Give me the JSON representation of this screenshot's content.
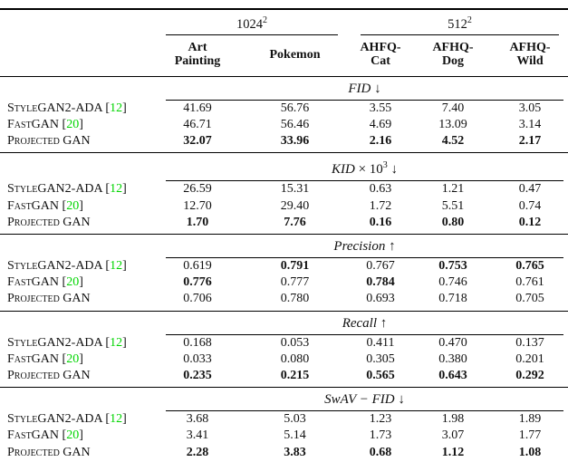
{
  "colors": {
    "citation_green": "#00d500",
    "text": "#111111",
    "rule": "#000000"
  },
  "table": {
    "resolution_groups": [
      {
        "base": "1024",
        "exponent": "2",
        "colspan": 2
      },
      {
        "base": "512",
        "exponent": "2",
        "colspan": 3
      }
    ],
    "column_headers": [
      {
        "lines": [
          "Art",
          "Painting"
        ]
      },
      {
        "lines": [
          "Pokemon"
        ]
      },
      {
        "lines": [
          "AHFQ-",
          "Cat"
        ]
      },
      {
        "lines": [
          "AFHQ-",
          "Dog"
        ]
      },
      {
        "lines": [
          "AFHQ-",
          "Wild"
        ]
      }
    ],
    "methods": [
      {
        "label": "StyleGAN2-ADA",
        "cite": "12"
      },
      {
        "label": "FastGAN",
        "cite": "20"
      },
      {
        "label": "Projected GAN",
        "cite": ""
      }
    ],
    "sections": [
      {
        "metric_italic": "FID",
        "metric_roman": "",
        "metric_exp": "",
        "arrow": "↓",
        "rows": [
          {
            "values": [
              "41.69",
              "56.76",
              "3.55",
              "7.40",
              "3.05"
            ],
            "bold": [
              0,
              0,
              0,
              0,
              0
            ]
          },
          {
            "values": [
              "46.71",
              "56.46",
              "4.69",
              "13.09",
              "3.14"
            ],
            "bold": [
              0,
              0,
              0,
              0,
              0
            ]
          },
          {
            "values": [
              "32.07",
              "33.96",
              "2.16",
              "4.52",
              "2.17"
            ],
            "bold": [
              1,
              1,
              1,
              1,
              1
            ]
          }
        ]
      },
      {
        "metric_italic": "KID",
        "metric_roman": " × 10",
        "metric_exp": "3",
        "arrow": "↓",
        "rows": [
          {
            "values": [
              "26.59",
              "15.31",
              "0.63",
              "1.21",
              "0.47"
            ],
            "bold": [
              0,
              0,
              0,
              0,
              0
            ]
          },
          {
            "values": [
              "12.70",
              "29.40",
              "1.72",
              "5.51",
              "0.74"
            ],
            "bold": [
              0,
              0,
              0,
              0,
              0
            ]
          },
          {
            "values": [
              "1.70",
              "7.76",
              "0.16",
              "0.80",
              "0.12"
            ],
            "bold": [
              1,
              1,
              1,
              1,
              1
            ]
          }
        ]
      },
      {
        "metric_italic": "Precision",
        "metric_roman": "",
        "metric_exp": "",
        "arrow": "↑",
        "rows": [
          {
            "values": [
              "0.619",
              "0.791",
              "0.767",
              "0.753",
              "0.765"
            ],
            "bold": [
              0,
              1,
              0,
              1,
              1
            ]
          },
          {
            "values": [
              "0.776",
              "0.777",
              "0.784",
              "0.746",
              "0.761"
            ],
            "bold": [
              1,
              0,
              1,
              0,
              0
            ]
          },
          {
            "values": [
              "0.706",
              "0.780",
              "0.693",
              "0.718",
              "0.705"
            ],
            "bold": [
              0,
              0,
              0,
              0,
              0
            ]
          }
        ]
      },
      {
        "metric_italic": "Recall",
        "metric_roman": "",
        "metric_exp": "",
        "arrow": "↑",
        "rows": [
          {
            "values": [
              "0.168",
              "0.053",
              "0.411",
              "0.470",
              "0.137"
            ],
            "bold": [
              0,
              0,
              0,
              0,
              0
            ]
          },
          {
            "values": [
              "0.033",
              "0.080",
              "0.305",
              "0.380",
              "0.201"
            ],
            "bold": [
              0,
              0,
              0,
              0,
              0
            ]
          },
          {
            "values": [
              "0.235",
              "0.215",
              "0.565",
              "0.643",
              "0.292"
            ],
            "bold": [
              1,
              1,
              1,
              1,
              1
            ]
          }
        ]
      },
      {
        "metric_italic": "SwAV − FID",
        "metric_roman": "",
        "metric_exp": "",
        "arrow": "↓",
        "rows": [
          {
            "values": [
              "3.68",
              "5.03",
              "1.23",
              "1.98",
              "1.89"
            ],
            "bold": [
              0,
              0,
              0,
              0,
              0
            ]
          },
          {
            "values": [
              "3.41",
              "5.14",
              "1.73",
              "3.07",
              "1.77"
            ],
            "bold": [
              0,
              0,
              0,
              0,
              0
            ]
          },
          {
            "values": [
              "2.28",
              "3.83",
              "0.68",
              "1.12",
              "1.08"
            ],
            "bold": [
              1,
              1,
              1,
              1,
              1
            ]
          }
        ]
      }
    ]
  }
}
